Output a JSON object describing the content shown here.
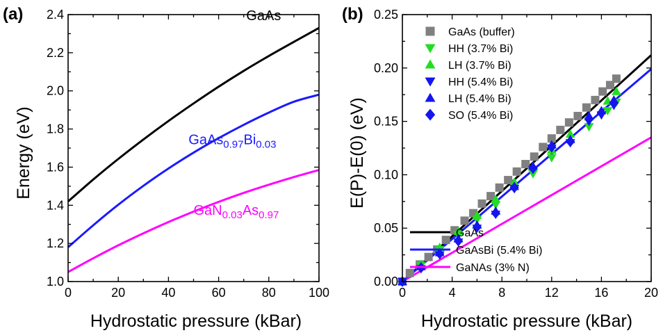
{
  "chart_data": [
    {
      "panel": "(a)",
      "type": "line",
      "xlabel": "Hydrostatic pressure (kBar)",
      "ylabel": "Energy (eV)",
      "xlim": [
        0,
        100
      ],
      "ylim": [
        1.0,
        2.4
      ],
      "xticks": [
        "0",
        "20",
        "40",
        "60",
        "80",
        "100"
      ],
      "yticks": [
        "1.0",
        "1.2",
        "1.4",
        "1.6",
        "1.8",
        "2.0",
        "2.2",
        "2.4"
      ],
      "series": [
        {
          "name": "GaAs",
          "color": "#000000",
          "x": [
            0,
            10,
            20,
            30,
            40,
            50,
            60,
            70,
            80,
            90,
            100
          ],
          "y": [
            1.42,
            1.535,
            1.643,
            1.745,
            1.842,
            1.934,
            2.022,
            2.105,
            2.183,
            2.257,
            2.33
          ]
        },
        {
          "name": "GaAs0.97Bi0.03",
          "color": "#1a1aff",
          "x": [
            0,
            10,
            20,
            30,
            40,
            50,
            60,
            70,
            80,
            90,
            100
          ],
          "y": [
            1.18,
            1.295,
            1.403,
            1.502,
            1.593,
            1.676,
            1.752,
            1.822,
            1.886,
            1.943,
            1.98
          ]
        },
        {
          "name": "GaN0.03As0.97",
          "color": "#ff00ff",
          "x": [
            0,
            10,
            20,
            30,
            40,
            50,
            60,
            70,
            80,
            90,
            100
          ],
          "y": [
            1.05,
            1.122,
            1.19,
            1.253,
            1.312,
            1.367,
            1.418,
            1.465,
            1.508,
            1.548,
            1.585
          ]
        }
      ],
      "labels": [
        {
          "parts": [
            {
              "t": "GaAs",
              "s": false
            }
          ],
          "color": "#000000",
          "x": 71,
          "y": 2.37
        },
        {
          "parts": [
            {
              "t": "GaAs",
              "s": false
            },
            {
              "t": "0.97",
              "s": true
            },
            {
              "t": "Bi",
              "s": false
            },
            {
              "t": "0.03",
              "s": true
            }
          ],
          "color": "#1a1aff",
          "x": 48,
          "y": 1.72
        },
        {
          "parts": [
            {
              "t": "GaN",
              "s": false
            },
            {
              "t": "0.03",
              "s": true
            },
            {
              "t": "As",
              "s": false
            },
            {
              "t": "0.97",
              "s": true
            }
          ],
          "color": "#ff00ff",
          "x": 50,
          "y": 1.35
        }
      ]
    },
    {
      "panel": "(b)",
      "type": "scatter",
      "xlabel": "Hydrostatic pressure (kBar)",
      "ylabel": "E(P)-E(0) (eV)",
      "xlim": [
        0,
        20
      ],
      "ylim": [
        0,
        0.25
      ],
      "xticks": [
        "0",
        "4",
        "8",
        "12",
        "16",
        "20"
      ],
      "yticks": [
        "0.00",
        "0.05",
        "0.10",
        "0.15",
        "0.20",
        "0.25"
      ],
      "series": [
        {
          "name": "GaAs (buffer)",
          "marker": "square",
          "color": "#808080",
          "x": [
            0,
            0.6,
            1.4,
            2.1,
            2.8,
            3.5,
            4.2,
            5.0,
            5.7,
            6.4,
            7.1,
            7.8,
            8.5,
            9.2,
            9.9,
            10.6,
            11.3,
            12.0,
            12.7,
            13.4,
            14.1,
            14.8,
            15.5,
            16.1,
            16.7,
            17.2
          ],
          "y": [
            0,
            0.008,
            0.016,
            0.023,
            0.03,
            0.039,
            0.048,
            0.057,
            0.064,
            0.073,
            0.08,
            0.088,
            0.095,
            0.103,
            0.11,
            0.117,
            0.126,
            0.134,
            0.142,
            0.149,
            0.155,
            0.163,
            0.17,
            0.178,
            0.184,
            0.19
          ]
        },
        {
          "name": "HH (3.7% Bi)",
          "marker": "triangle-down",
          "color": "#22dd22",
          "x": [
            0,
            1.5,
            3.0,
            4.5,
            6.0,
            7.5,
            9.0,
            10.5,
            12.0,
            13.5,
            15.0,
            16.5,
            17.2
          ],
          "y": [
            0,
            0.015,
            0.03,
            0.044,
            0.058,
            0.072,
            0.087,
            0.101,
            0.116,
            0.13,
            0.145,
            0.16,
            0.168
          ]
        },
        {
          "name": "LH (3.7% Bi)",
          "marker": "triangle-up",
          "color": "#22dd22",
          "x": [
            0,
            1.5,
            3.0,
            4.5,
            6.0,
            7.5,
            9.0,
            10.5,
            12.0,
            13.5,
            15.0,
            16.5,
            17.2
          ],
          "y": [
            0,
            0.016,
            0.032,
            0.047,
            0.062,
            0.077,
            0.093,
            0.108,
            0.123,
            0.138,
            0.154,
            0.169,
            0.178
          ]
        },
        {
          "name": "HH (5.4% Bi)",
          "marker": "triangle-down",
          "color": "#1515ee",
          "x": [
            0,
            1.5,
            3.0,
            4.5,
            6.0,
            7.5,
            9.0,
            10.5,
            12.0,
            13.5,
            15.0,
            16.0,
            17.0
          ],
          "y": [
            0,
            0.012,
            0.025,
            0.037,
            0.05,
            0.063,
            0.087,
            0.105,
            0.125,
            0.13,
            0.15,
            0.156,
            0.165
          ]
        },
        {
          "name": "LH (5.4% Bi)",
          "marker": "triangle-up",
          "color": "#1515ee",
          "x": [
            0,
            1.5,
            3.0,
            4.5,
            6.0,
            7.5,
            9.0,
            10.5,
            12.0,
            13.5,
            15.0,
            16.0,
            17.0
          ],
          "y": [
            0,
            0.014,
            0.027,
            0.04,
            0.053,
            0.066,
            0.089,
            0.108,
            0.128,
            0.133,
            0.155,
            0.16,
            0.17
          ]
        },
        {
          "name": "SO (5.4% Bi)",
          "marker": "diamond",
          "color": "#1515ee",
          "x": [
            0,
            1.5,
            3.0,
            4.5,
            6.0,
            7.5,
            9.0,
            10.5,
            12.0,
            13.5,
            15.0,
            16.0,
            17.0
          ],
          "y": [
            0,
            0.013,
            0.026,
            0.038,
            0.051,
            0.064,
            0.088,
            0.106,
            0.126,
            0.131,
            0.152,
            0.158,
            0.167
          ]
        }
      ],
      "lines": [
        {
          "name": "GaAs",
          "color": "#000000",
          "x": [
            0,
            20
          ],
          "y": [
            0,
            0.212
          ]
        },
        {
          "name": "GaAsBi (5.4% Bi)",
          "color": "#1a1aff",
          "x": [
            0,
            20
          ],
          "y": [
            0,
            0.199
          ]
        },
        {
          "name": "GaNAs (3% N)",
          "color": "#ff00ff",
          "x": [
            0,
            20
          ],
          "y": [
            0,
            0.135
          ]
        }
      ],
      "legend_top": "top-left",
      "legend_bottom": "bottom-right"
    }
  ]
}
